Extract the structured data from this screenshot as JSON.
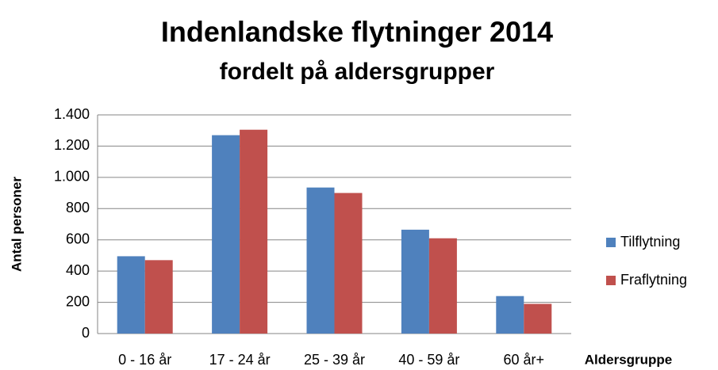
{
  "chart_data": {
    "type": "bar",
    "title": "Indenlandske flytninger 2014",
    "subtitle": "fordelt på aldersgrupper",
    "y_label": "Antal personer",
    "x_label": "Aldersgruppe",
    "categories": [
      "0 - 16 år",
      "17 - 24 år",
      "25 - 39 år",
      "40 - 59 år",
      "60 år+"
    ],
    "series": [
      {
        "name": "Tilflytning",
        "color": "#4f81bd",
        "values": [
          495,
          1270,
          935,
          665,
          240
        ]
      },
      {
        "name": "Fraflytning",
        "color": "#c0504d",
        "values": [
          470,
          1305,
          900,
          610,
          190
        ]
      }
    ],
    "ylim": [
      0,
      1400
    ],
    "yticks": [
      0,
      200,
      400,
      600,
      800,
      {
        "value": 1000,
        "label": "1.000"
      },
      {
        "value": 1200,
        "label": "1.200"
      },
      {
        "value": 1400,
        "label": "1.400"
      }
    ],
    "grid": true,
    "legend": "right"
  }
}
